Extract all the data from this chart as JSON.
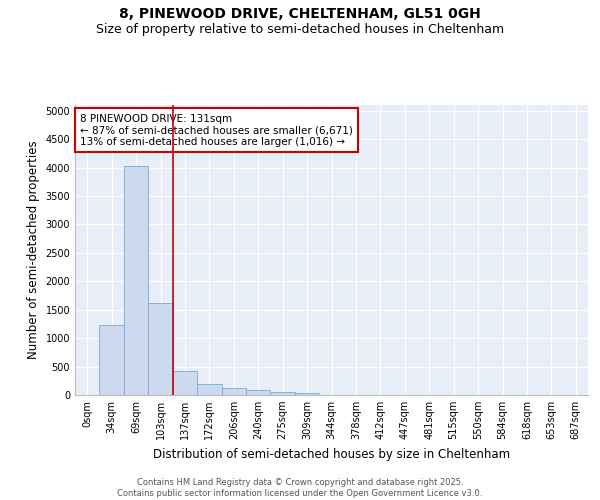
{
  "title_line1": "8, PINEWOOD DRIVE, CHELTENHAM, GL51 0GH",
  "title_line2": "Size of property relative to semi-detached houses in Cheltenham",
  "xlabel": "Distribution of semi-detached houses by size in Cheltenham",
  "ylabel": "Number of semi-detached properties",
  "categories": [
    "0sqm",
    "34sqm",
    "69sqm",
    "103sqm",
    "137sqm",
    "172sqm",
    "206sqm",
    "240sqm",
    "275sqm",
    "309sqm",
    "344sqm",
    "378sqm",
    "412sqm",
    "447sqm",
    "481sqm",
    "515sqm",
    "550sqm",
    "584sqm",
    "618sqm",
    "653sqm",
    "687sqm"
  ],
  "values": [
    5,
    1230,
    4020,
    1620,
    430,
    200,
    130,
    80,
    50,
    40,
    0,
    0,
    0,
    0,
    0,
    0,
    0,
    0,
    0,
    0,
    0
  ],
  "bar_color": "#ccd9ee",
  "bar_edge_color": "#7aaad0",
  "vline_color": "#cc0000",
  "vline_x_pos": 3.5,
  "annotation_text": "8 PINEWOOD DRIVE: 131sqm\n← 87% of semi-detached houses are smaller (6,671)\n13% of semi-detached houses are larger (1,016) →",
  "annotation_box_facecolor": "#ffffff",
  "annotation_box_edgecolor": "#cc0000",
  "ylim": [
    0,
    5100
  ],
  "yticks": [
    0,
    500,
    1000,
    1500,
    2000,
    2500,
    3000,
    3500,
    4000,
    4500,
    5000
  ],
  "axes_bg": "#e8eef8",
  "fig_bg": "#ffffff",
  "title_fontsize": 10,
  "subtitle_fontsize": 9,
  "axis_label_fontsize": 8.5,
  "tick_fontsize": 7,
  "annotation_fontsize": 7.5,
  "footer_text": "Contains HM Land Registry data © Crown copyright and database right 2025.\nContains public sector information licensed under the Open Government Licence v3.0."
}
